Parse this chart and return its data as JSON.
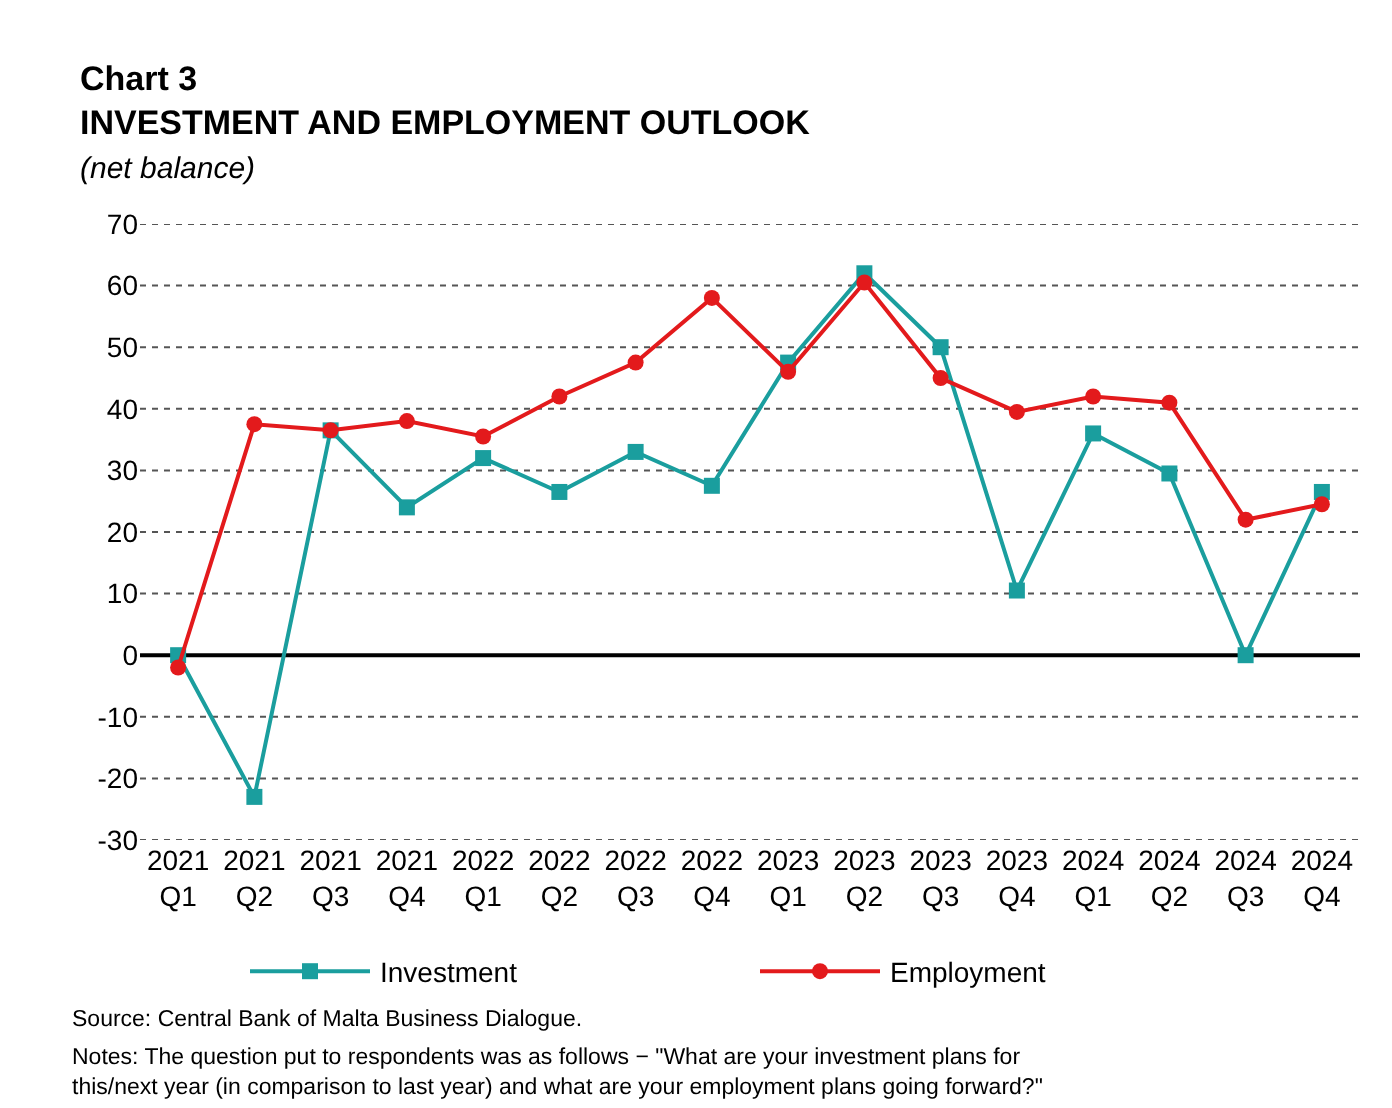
{
  "chart_data": {
    "type": "line",
    "title": "Chart 3",
    "subtitle": "INVESTMENT AND EMPLOYMENT OUTLOOK",
    "ylabel": "(net balance)",
    "categories": [
      "2021 Q1",
      "2021 Q2",
      "2021 Q3",
      "2021 Q4",
      "2022 Q1",
      "2022 Q2",
      "2022 Q3",
      "2022 Q4",
      "2023 Q1",
      "2023 Q2",
      "2023 Q3",
      "2023 Q4",
      "2024 Q1",
      "2024 Q2",
      "2024 Q3",
      "2024 Q4"
    ],
    "series": [
      {
        "name": "Investment",
        "color": "#1a9e9e",
        "marker": "square",
        "values": [
          0,
          -23,
          36.5,
          24,
          32,
          26.5,
          33,
          27.5,
          47.5,
          62,
          50,
          10.5,
          36,
          29.5,
          0,
          26.5
        ]
      },
      {
        "name": "Employment",
        "color": "#e31a1c",
        "marker": "circle",
        "values": [
          -2,
          37.5,
          36.5,
          38,
          35.5,
          42,
          47.5,
          58,
          46,
          60.5,
          45,
          39.5,
          42,
          41,
          22,
          24.5
        ]
      }
    ],
    "ylim": [
      -30,
      70
    ],
    "yticks": [
      -30,
      -20,
      -10,
      0,
      10,
      20,
      30,
      40,
      50,
      60,
      70
    ],
    "grid": "y",
    "legend": "bottom",
    "line_style": "solid",
    "ref_lines": [
      {
        "axis": "y",
        "value": 0,
        "color": "#000000",
        "line_style": "solid"
      }
    ],
    "annotations": [
      "Source: Central Bank of Malta Business Dialogue.",
      "Notes: The question put to respondents was as follows − \"What are your investment plans for this/next year (in comparison to last year) and what are your employment plans going forward?\""
    ]
  }
}
